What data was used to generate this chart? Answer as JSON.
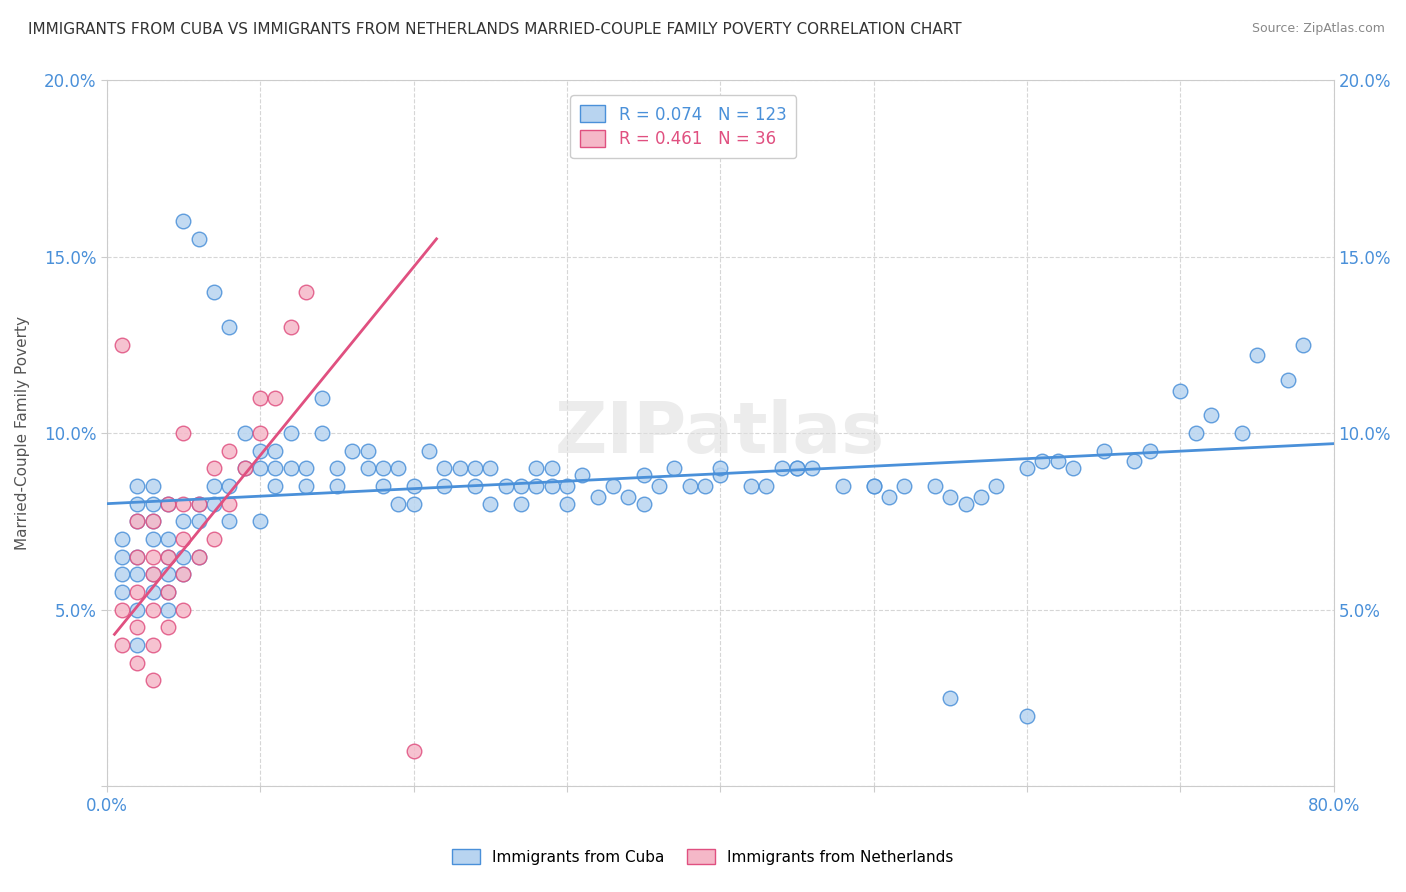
{
  "title": "IMMIGRANTS FROM CUBA VS IMMIGRANTS FROM NETHERLANDS MARRIED-COUPLE FAMILY POVERTY CORRELATION CHART",
  "source": "Source: ZipAtlas.com",
  "ylabel": "Married-Couple Family Poverty",
  "xlim": [
    0,
    0.8
  ],
  "ylim": [
    0,
    0.2
  ],
  "watermark": "ZIPatlas",
  "cuba_face_color": "#b8d4f0",
  "cuba_edge_color": "#4a90d9",
  "netherlands_face_color": "#f5b8c8",
  "netherlands_edge_color": "#e05080",
  "cuba_line_color": "#4a90d9",
  "netherlands_line_color": "#e05080",
  "legend_r_cuba": "0.074",
  "legend_n_cuba": "123",
  "legend_r_netherlands": "0.461",
  "legend_n_netherlands": "36",
  "cuba_x": [
    0.01,
    0.01,
    0.01,
    0.01,
    0.02,
    0.02,
    0.02,
    0.02,
    0.02,
    0.02,
    0.02,
    0.03,
    0.03,
    0.03,
    0.03,
    0.03,
    0.03,
    0.04,
    0.04,
    0.04,
    0.04,
    0.04,
    0.04,
    0.05,
    0.05,
    0.05,
    0.05,
    0.06,
    0.06,
    0.06,
    0.06,
    0.07,
    0.07,
    0.07,
    0.08,
    0.08,
    0.08,
    0.09,
    0.09,
    0.1,
    0.1,
    0.1,
    0.11,
    0.11,
    0.11,
    0.12,
    0.12,
    0.13,
    0.13,
    0.14,
    0.14,
    0.15,
    0.15,
    0.16,
    0.17,
    0.17,
    0.18,
    0.18,
    0.19,
    0.19,
    0.2,
    0.2,
    0.21,
    0.22,
    0.22,
    0.23,
    0.24,
    0.24,
    0.25,
    0.25,
    0.26,
    0.27,
    0.27,
    0.28,
    0.28,
    0.29,
    0.29,
    0.3,
    0.31,
    0.32,
    0.33,
    0.34,
    0.35,
    0.36,
    0.37,
    0.38,
    0.39,
    0.4,
    0.42,
    0.43,
    0.44,
    0.45,
    0.46,
    0.48,
    0.5,
    0.51,
    0.52,
    0.54,
    0.55,
    0.56,
    0.57,
    0.58,
    0.6,
    0.61,
    0.62,
    0.63,
    0.65,
    0.67,
    0.68,
    0.7,
    0.71,
    0.72,
    0.74,
    0.75,
    0.77,
    0.78,
    0.3,
    0.35,
    0.4,
    0.45,
    0.5,
    0.55,
    0.6
  ],
  "cuba_y": [
    0.055,
    0.06,
    0.065,
    0.07,
    0.04,
    0.05,
    0.06,
    0.065,
    0.075,
    0.08,
    0.085,
    0.055,
    0.06,
    0.07,
    0.075,
    0.08,
    0.085,
    0.05,
    0.055,
    0.06,
    0.065,
    0.07,
    0.08,
    0.06,
    0.065,
    0.075,
    0.16,
    0.065,
    0.075,
    0.08,
    0.155,
    0.08,
    0.085,
    0.14,
    0.075,
    0.085,
    0.13,
    0.09,
    0.1,
    0.075,
    0.09,
    0.095,
    0.085,
    0.09,
    0.095,
    0.09,
    0.1,
    0.085,
    0.09,
    0.1,
    0.11,
    0.085,
    0.09,
    0.095,
    0.09,
    0.095,
    0.085,
    0.09,
    0.08,
    0.09,
    0.08,
    0.085,
    0.095,
    0.085,
    0.09,
    0.09,
    0.085,
    0.09,
    0.08,
    0.09,
    0.085,
    0.08,
    0.085,
    0.085,
    0.09,
    0.085,
    0.09,
    0.085,
    0.088,
    0.082,
    0.085,
    0.082,
    0.088,
    0.085,
    0.09,
    0.085,
    0.085,
    0.088,
    0.085,
    0.085,
    0.09,
    0.09,
    0.09,
    0.085,
    0.085,
    0.082,
    0.085,
    0.085,
    0.082,
    0.08,
    0.082,
    0.085,
    0.09,
    0.092,
    0.092,
    0.09,
    0.095,
    0.092,
    0.095,
    0.112,
    0.1,
    0.105,
    0.1,
    0.122,
    0.115,
    0.125,
    0.08,
    0.08,
    0.09,
    0.09,
    0.085,
    0.025,
    0.02
  ],
  "netherlands_x": [
    0.01,
    0.01,
    0.01,
    0.02,
    0.02,
    0.02,
    0.02,
    0.02,
    0.03,
    0.03,
    0.03,
    0.03,
    0.03,
    0.03,
    0.04,
    0.04,
    0.04,
    0.04,
    0.05,
    0.05,
    0.05,
    0.05,
    0.05,
    0.06,
    0.06,
    0.07,
    0.07,
    0.08,
    0.08,
    0.09,
    0.1,
    0.1,
    0.11,
    0.12,
    0.13,
    0.2
  ],
  "netherlands_y": [
    0.04,
    0.05,
    0.125,
    0.035,
    0.045,
    0.055,
    0.065,
    0.075,
    0.03,
    0.04,
    0.05,
    0.06,
    0.065,
    0.075,
    0.045,
    0.055,
    0.065,
    0.08,
    0.05,
    0.06,
    0.07,
    0.08,
    0.1,
    0.065,
    0.08,
    0.07,
    0.09,
    0.08,
    0.095,
    0.09,
    0.1,
    0.11,
    0.11,
    0.13,
    0.14,
    0.01
  ],
  "cuba_trend_x": [
    0.0,
    0.8
  ],
  "cuba_trend_y": [
    0.08,
    0.097
  ],
  "netherlands_trend_x": [
    0.005,
    0.215
  ],
  "netherlands_trend_y": [
    0.043,
    0.155
  ]
}
